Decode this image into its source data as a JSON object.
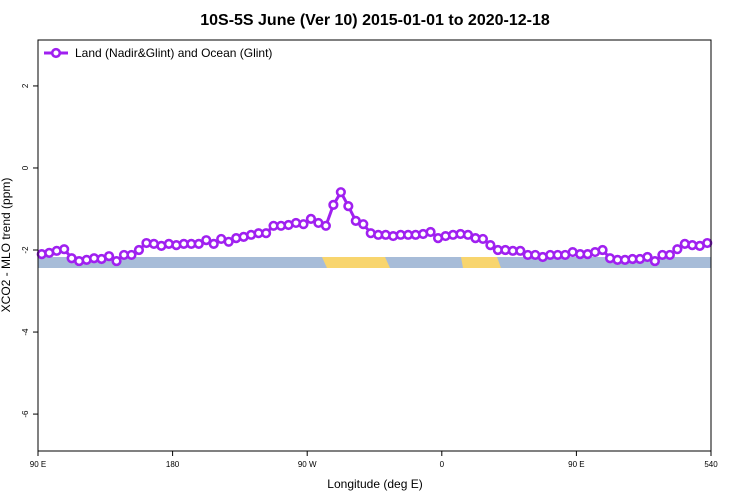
{
  "chart_data": {
    "type": "line",
    "title": "10S-5S June (Ver 10)   2015-01-01 to 2020-12-18",
    "xlabel": "Longitude (deg E)",
    "ylabel": "XCO2 - MLO trend (ppm)",
    "xlim": [
      90,
      540
    ],
    "ylim": [
      -6.9,
      3.12
    ],
    "xticks": [
      {
        "value": 90,
        "label": "90 E"
      },
      180,
      {
        "value": 270,
        "label": "90 W"
      },
      {
        "value": 360,
        "label": "0"
      },
      {
        "value": 450,
        "label": "90 E"
      },
      540
    ],
    "yticks": [
      2,
      0,
      -2,
      -4,
      -6
    ],
    "legend": "upper left",
    "x": [
      92.5,
      97.5,
      102.5,
      107.5,
      112.5,
      117.5,
      122.5,
      127.5,
      132.5,
      137.5,
      142.5,
      147.5,
      152.5,
      157.5,
      162.5,
      167.5,
      172.5,
      177.5,
      182.5,
      187.5,
      192.5,
      197.5,
      202.5,
      207.5,
      212.5,
      217.5,
      222.5,
      227.5,
      232.5,
      237.5,
      242.5,
      247.5,
      252.5,
      257.5,
      262.5,
      267.5,
      272.5,
      277.5,
      282.5,
      287.5,
      292.5,
      297.5,
      302.5,
      307.5,
      312.5,
      317.5,
      322.5,
      327.5,
      332.5,
      337.5,
      342.5,
      347.5,
      352.5,
      357.5,
      362.5,
      367.5,
      372.5,
      377.5,
      382.5,
      387.5,
      392.5,
      397.5,
      402.5,
      407.5,
      412.5,
      417.5,
      422.5,
      427.5,
      432.5,
      437.5,
      442.5,
      447.5,
      452.5,
      457.5,
      462.5,
      467.5,
      472.5,
      477.5,
      482.5,
      487.5,
      492.5,
      497.5,
      502.5,
      507.5,
      512.5,
      517.5,
      522.5,
      527.5,
      532.5,
      537.5
    ],
    "series": [
      {
        "name": "Land (Nadir&Glint) and Ocean (Glint)",
        "color": "#a020f0",
        "values": [
          -2.1,
          -2.07,
          -2.02,
          -1.98,
          -2.2,
          -2.27,
          -2.24,
          -2.2,
          -2.22,
          -2.15,
          -2.27,
          -2.12,
          -2.12,
          -2.0,
          -1.83,
          -1.85,
          -1.9,
          -1.85,
          -1.88,
          -1.85,
          -1.85,
          -1.85,
          -1.76,
          -1.85,
          -1.73,
          -1.8,
          -1.71,
          -1.68,
          -1.63,
          -1.59,
          -1.59,
          -1.41,
          -1.41,
          -1.39,
          -1.34,
          -1.37,
          -1.24,
          -1.34,
          -1.41,
          -0.9,
          -0.59,
          -0.93,
          -1.29,
          -1.37,
          -1.59,
          -1.63,
          -1.63,
          -1.66,
          -1.63,
          -1.63,
          -1.63,
          -1.61,
          -1.56,
          -1.71,
          -1.66,
          -1.63,
          -1.61,
          -1.63,
          -1.71,
          -1.73,
          -1.88,
          -2.0,
          -2.0,
          -2.02,
          -2.02,
          -2.12,
          -2.12,
          -2.17,
          -2.12,
          -2.12,
          -2.12,
          -2.05,
          -2.1,
          -2.1,
          -2.05,
          -2.0,
          -2.2,
          -2.24,
          -2.24,
          -2.22,
          -2.22,
          -2.17,
          -2.27,
          -2.12,
          -2.12,
          -1.98,
          -1.85,
          -1.88,
          -1.9,
          -1.83
        ]
      }
    ]
  }
}
